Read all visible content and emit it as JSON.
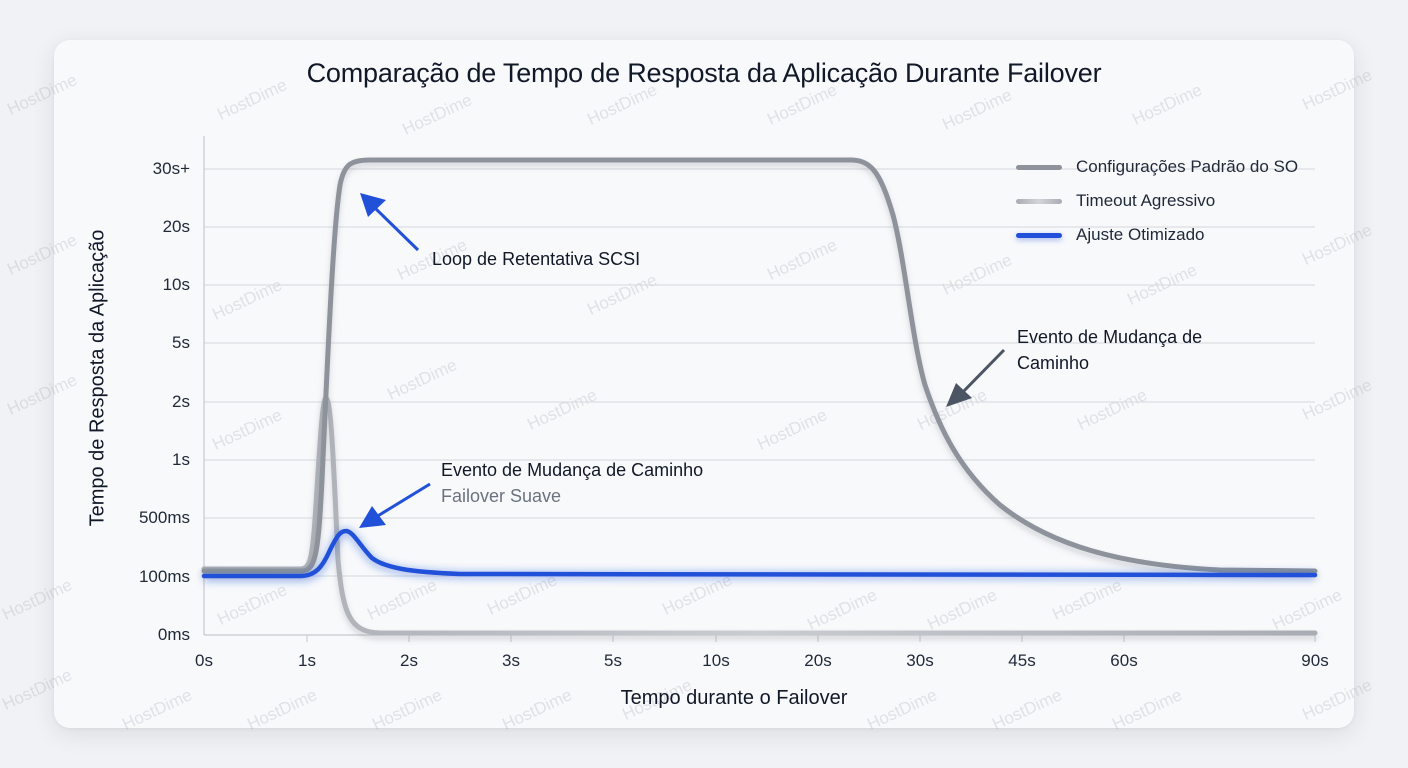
{
  "chart_data": {
    "type": "line",
    "title": "Comparação de Tempo de Resposta da Aplicação Durante Failover",
    "xlabel": "Tempo durante o Failover",
    "ylabel": "Tempo de Resposta da Aplicação",
    "x_ticks": [
      "0s",
      "1s",
      "2s",
      "3s",
      "5s",
      "10s",
      "20s",
      "30s",
      "45s",
      "60s",
      "90s"
    ],
    "y_ticks": [
      "0ms",
      "100ms",
      "500ms",
      "1s",
      "2s",
      "5s",
      "10s",
      "20s",
      "30s+"
    ],
    "grid": true,
    "legend_position": "top-right",
    "series": [
      {
        "name": "Configurações Padrão do SO",
        "color": "#8e939b",
        "points": [
          [
            "0s",
            "100ms"
          ],
          [
            "1s",
            "100ms"
          ],
          [
            "1.3s",
            "20s"
          ],
          [
            "1.5s",
            "30s+"
          ],
          [
            "20s",
            "30s+"
          ],
          [
            "25s",
            "20s"
          ],
          [
            "30s",
            "2s"
          ],
          [
            "45s",
            "500ms"
          ],
          [
            "60s",
            "100ms"
          ],
          [
            "90s",
            "100ms"
          ]
        ]
      },
      {
        "name": "Timeout Agressivo",
        "color": "#b6b9bf",
        "points": [
          [
            "0s",
            "100ms"
          ],
          [
            "1s",
            "100ms"
          ],
          [
            "1.2s",
            "2s"
          ],
          [
            "1.4s",
            "100ms"
          ],
          [
            "2s",
            "0ms"
          ],
          [
            "90s",
            "0ms"
          ]
        ]
      },
      {
        "name": "Ajuste Otimizado",
        "color": "#2151d8",
        "points": [
          [
            "0s",
            "100ms"
          ],
          [
            "1s",
            "100ms"
          ],
          [
            "1.4s",
            "300ms"
          ],
          [
            "2s",
            "120ms"
          ],
          [
            "3s",
            "100ms"
          ],
          [
            "90s",
            "100ms"
          ]
        ]
      }
    ],
    "annotations": [
      {
        "text": "Loop de Retentativa SCSI",
        "target": "Configurações Padrão do SO",
        "at": "1.5s"
      },
      {
        "text": "Evento de Mudança de Caminho",
        "target": "Configurações Padrão do SO",
        "at": "30s"
      },
      {
        "text": "Evento de Mudança de Caminho",
        "subtext": "Failover Suave",
        "target": "Ajuste Otimizado",
        "at": "1.4s"
      }
    ]
  },
  "title": "Comparação de Tempo de Resposta da Aplicação Durante Failover",
  "axes": {
    "xlabel": "Tempo durante o Failover",
    "ylabel": "Tempo de Resposta da Aplicação",
    "x_ticks": [
      "0s",
      "1s",
      "2s",
      "3s",
      "5s",
      "10s",
      "20s",
      "30s",
      "45s",
      "60s",
      "90s"
    ],
    "y_ticks": [
      "30s+",
      "20s",
      "10s",
      "5s",
      "2s",
      "1s",
      "500ms",
      "100ms",
      "0ms"
    ]
  },
  "legend": [
    {
      "label": "Configurações Padrão do SO",
      "color": "#8e939b"
    },
    {
      "label": "Timeout Agressivo",
      "color": "#b6b9bf"
    },
    {
      "label": "Ajuste Otimizado",
      "color": "#2151d8"
    }
  ],
  "annotations": {
    "scsi": "Loop de Retentativa SCSI",
    "path_change_default": "Evento de Mudança de Caminho",
    "path_change_opt": "Evento de Mudança de Caminho",
    "path_change_opt_sub": "Failover Suave"
  },
  "watermark": "HostDime"
}
